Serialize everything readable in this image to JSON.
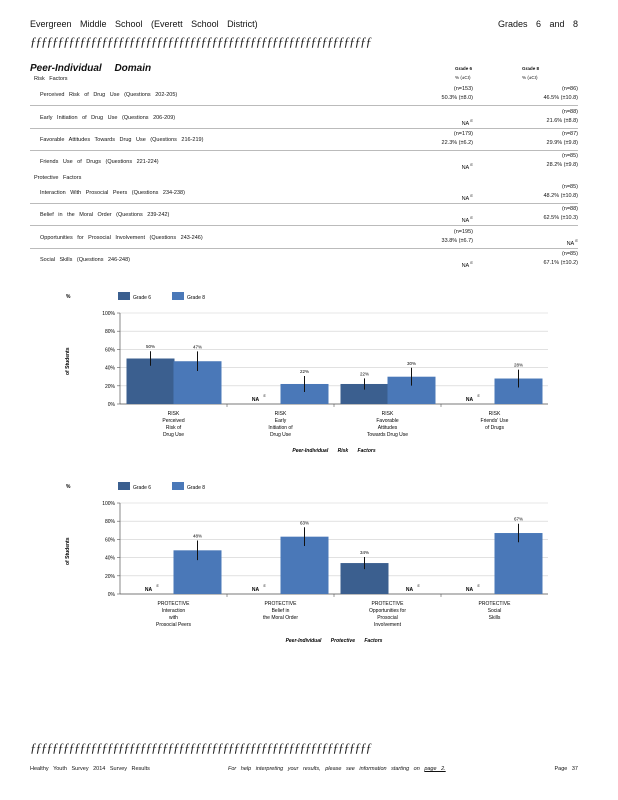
{
  "header": {
    "school": "Evergreen Middle School (Everett School District)",
    "grades": "Grades 6 and 8"
  },
  "rule_text": "ƒƒƒƒƒƒƒƒƒƒƒƒƒƒƒƒƒƒƒƒƒƒƒƒƒƒƒƒƒƒƒƒƒƒƒƒƒƒƒƒƒƒƒƒƒƒƒƒƒƒƒƒƒƒƒƒƒƒƒƒƒƒ",
  "domain_title": "Peer-Individual Domain",
  "columns": {
    "g6_head": "Grade 6",
    "g8_head": "Grade 8",
    "g6_sub": "% (±CI)",
    "g8_sub": "% (±CI)"
  },
  "sections": {
    "risk": "Risk Factors",
    "protective": "Protective Factors"
  },
  "rows": [
    {
      "label": "Perceived Risk of Drug Use (Questions 202-205)",
      "g6_n": "(n=153)",
      "g6_val": "50.3% (±8.0)",
      "g8_n": "(n=86)",
      "g8_val": "46.5% (±10.8)"
    },
    {
      "label": "Early Initiation of Drug Use (Questions 206-209)",
      "g6_n": "",
      "g6_val": "NA",
      "g8_n": "(n=88)",
      "g8_val": "21.6% (±8.8)"
    },
    {
      "label": "Favorable Attitudes Towards Drug Use (Questions 216-219)",
      "g6_n": "(n=179)",
      "g6_val": "22.3% (±6.2)",
      "g8_n": "(n=87)",
      "g8_val": "29.9% (±9.8)"
    },
    {
      "label": "Friends Use of Drugs (Questions 221-224)",
      "g6_n": "",
      "g6_val": "NA",
      "g8_n": "(n=85)",
      "g8_val": "28.2% (±9.8)"
    },
    {
      "label": "Interaction With Prosocial Peers (Questions 234-238)",
      "g6_n": "",
      "g6_val": "NA",
      "g8_n": "(n=85)",
      "g8_val": "48.2% (±10.8)"
    },
    {
      "label": "Belief in the Moral Order (Questions 239-242)",
      "g6_n": "",
      "g6_val": "NA",
      "g8_n": "(n=88)",
      "g8_val": "62.5% (±10.3)"
    },
    {
      "label": "Opportunities for Prosocial Involvement (Questions 243-246)",
      "g6_n": "(n=195)",
      "g6_val": "33.8% (±6.7)",
      "g8_n": "",
      "g8_val": "NA"
    },
    {
      "label": "Social Skills (Questions 246-248)",
      "g6_n": "",
      "g6_val": "NA",
      "g8_n": "(n=85)",
      "g8_val": "67.1% (±10.2)"
    }
  ],
  "footnote_mark": "E",
  "chart_data": [
    {
      "type": "bar",
      "ylabel": "% of Students",
      "legend": [
        "Grade 6",
        "Grade 8"
      ],
      "xlabel": "Peer-Individual Risk Factors",
      "ylim": [
        0,
        100
      ],
      "yticks": [
        "0%",
        "20%",
        "40%",
        "60%",
        "80%",
        "100%"
      ],
      "categories": [
        [
          "RISK",
          "Perceived",
          "Risk of",
          "Drug Use"
        ],
        [
          "RISK",
          "Early",
          "Initiation of",
          "Drug Use"
        ],
        [
          "RISK",
          "Favorable",
          "Attitudes",
          "Towards Drug Use"
        ],
        [
          "RISK",
          "Friends' Use",
          "of Drugs"
        ]
      ],
      "series": [
        {
          "name": "Grade 6",
          "values": [
            50,
            null,
            22,
            null
          ],
          "labels": [
            "50%",
            "NA",
            "22%",
            "NA"
          ],
          "ci": [
            8.0,
            null,
            6.2,
            null
          ]
        },
        {
          "name": "Grade 8",
          "values": [
            47,
            22,
            30,
            28
          ],
          "labels": [
            "47%",
            "22%",
            "30%",
            "28%"
          ],
          "ci": [
            10.8,
            8.8,
            9.8,
            9.8
          ]
        }
      ]
    },
    {
      "type": "bar",
      "ylabel": "% of Students",
      "legend": [
        "Grade 6",
        "Grade 8"
      ],
      "xlabel": "Peer-Individual Protective Factors",
      "ylim": [
        0,
        100
      ],
      "yticks": [
        "0%",
        "20%",
        "40%",
        "60%",
        "80%",
        "100%"
      ],
      "categories": [
        [
          "PROTECTIVE",
          "Interaction",
          "with",
          "Prosocial Peers"
        ],
        [
          "PROTECTIVE",
          "Belief in",
          "the Moral Order"
        ],
        [
          "PROTECTIVE",
          "Opportunities for",
          "Prosocial",
          "Involvement"
        ],
        [
          "PROTECTIVE",
          "Social",
          "Skills"
        ]
      ],
      "series": [
        {
          "name": "Grade 6",
          "values": [
            null,
            null,
            34,
            null
          ],
          "labels": [
            "NA",
            "NA",
            "34%",
            "NA"
          ],
          "ci": [
            null,
            null,
            6.7,
            null
          ]
        },
        {
          "name": "Grade 8",
          "values": [
            48,
            63,
            null,
            67
          ],
          "labels": [
            "48%",
            "63%",
            "NA",
            "67%"
          ],
          "ci": [
            10.8,
            10.3,
            null,
            10.2
          ]
        }
      ]
    }
  ],
  "colors": {
    "grade6": "#3b5f8f",
    "grade8": "#4a78b8"
  },
  "footer": {
    "left": "Healthy Youth Survey 2014 Survey Results",
    "middle": "For help interpreting your results, please see information starting on",
    "page_link": "page 2.",
    "right": "Page 37"
  }
}
